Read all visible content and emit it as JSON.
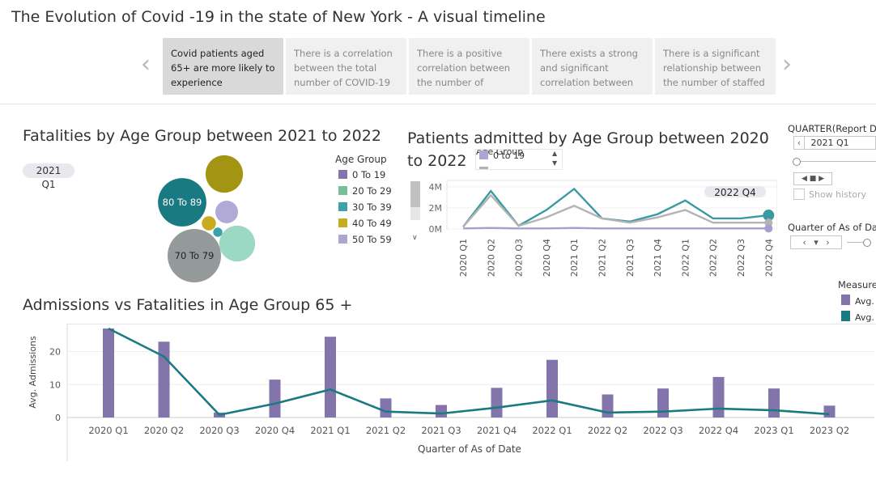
{
  "dashboard": {
    "title": "The Evolution of Covid -19 in the state of New York - A visual timeline"
  },
  "story_points": [
    {
      "label": "Covid patients aged 65+ are more likely to experience",
      "active": true
    },
    {
      "label": "There is a correlation between the total number of COVID-19",
      "active": false
    },
    {
      "label": "There is a positive correlation between the number of",
      "active": false
    },
    {
      "label": "There exists a strong and significant correlation between",
      "active": false
    },
    {
      "label": "There is a significant relationship between the number of staffed",
      "active": false
    }
  ],
  "fatalities_panel": {
    "title": "Fatalities by Age Group  between 2021 to 2022",
    "quarter_pill": {
      "year": "2021",
      "quarter": "Q1"
    },
    "legend_title": "Age Group",
    "legend": [
      {
        "label": "0 To 19",
        "color": "#8374ab"
      },
      {
        "label": "20 To 29",
        "color": "#76bf9a"
      },
      {
        "label": "30 To 39",
        "color": "#3aa1ad"
      },
      {
        "label": "40 To 49",
        "color": "#c8ab1f"
      },
      {
        "label": "50 To 59",
        "color": "#ada6d3"
      }
    ]
  },
  "admitted_panel": {
    "title": "Patients admitted by Age Group between 2020 to 2022",
    "legend_title": "Age Group",
    "legend": [
      {
        "label": "0 to 19",
        "color": "#ada6d3"
      }
    ],
    "annotation": "2022 Q4"
  },
  "filters": {
    "quarter_report": {
      "title": "QUARTER(Report D",
      "value": "2021 Q1",
      "show_history": "Show history"
    },
    "quarter_as_of": {
      "title": "Quarter of As of Dat"
    }
  },
  "measure_legend": {
    "title": "Measure",
    "items": [
      {
        "label": "Avg.",
        "color": "#8374ab"
      },
      {
        "label": "Avg.",
        "color": "#1a7a82"
      }
    ]
  },
  "admissions_panel": {
    "title": "Admissions vs Fatalities in Age Group 65 +"
  },
  "chart_data": [
    {
      "type": "bubble",
      "title": "Fatalities by Age Group  between 2021 to 2022",
      "bubbles": [
        {
          "label": "70 To 79",
          "color": "#94999a",
          "size": 100
        },
        {
          "label": "80 To 89",
          "color": "#1a7a82",
          "size": 82
        },
        {
          "label": "",
          "color": "#a39413",
          "size": 49
        },
        {
          "label": "",
          "color": "#9bd9c4",
          "size": 45
        },
        {
          "label": "",
          "color": "#b1a9d6",
          "size": 18
        },
        {
          "label": "",
          "color": "#c8ab1f",
          "size": 7
        },
        {
          "label": "",
          "color": "#3aa1ad",
          "size": 3
        }
      ]
    },
    {
      "type": "line",
      "title": "Patients admitted by Age Group between 2020 to 2022",
      "categories": [
        "2020 Q1",
        "2020 Q2",
        "2020 Q3",
        "2020 Q4",
        "2021 Q1",
        "2021 Q2",
        "2021 Q3",
        "2021 Q4",
        "2022 Q1",
        "2022 Q2",
        "2022 Q3",
        "2022 Q4"
      ],
      "ytick_labels": [
        "0M",
        "2M",
        "4M"
      ],
      "ylim": [
        0,
        4.6
      ],
      "annotation": "2022 Q4",
      "series": [
        {
          "color": "#3a9aa3",
          "values": [
            0.2,
            3.6,
            0.3,
            1.8,
            3.8,
            1.0,
            0.7,
            1.4,
            2.7,
            1.0,
            1.0,
            1.3
          ]
        },
        {
          "color": "#b3b3b3",
          "values": [
            0.2,
            3.2,
            0.3,
            1.1,
            2.2,
            1.0,
            0.6,
            1.1,
            1.8,
            0.6,
            0.6,
            0.6
          ]
        },
        {
          "color": "#a79fd1",
          "values": [
            0.05,
            0.1,
            0.05,
            0.05,
            0.1,
            0.05,
            0.05,
            0.05,
            0.05,
            0.05,
            0.05,
            0.05
          ]
        }
      ]
    },
    {
      "type": "bar+line",
      "title": "Admissions vs Fatalities in Age Group 65 +",
      "categories": [
        "2020 Q1",
        "2020 Q2",
        "2020 Q3",
        "2020 Q4",
        "2021 Q1",
        "2021 Q2",
        "2021 Q3",
        "2021 Q4",
        "2022 Q1",
        "2022 Q2",
        "2022 Q3",
        "2022 Q4",
        "2023 Q1",
        "2023 Q2"
      ],
      "xlabel": "Quarter of As of Date",
      "ylabel": "Avg. Admissions",
      "yticks": [
        0,
        10,
        20
      ],
      "ylim": [
        0,
        27
      ],
      "series": [
        {
          "type": "bar",
          "color": "#8374ab",
          "values": [
            27,
            23,
            1.5,
            11.5,
            24.5,
            5.8,
            3.8,
            9,
            17.5,
            7,
            8.8,
            12.3,
            8.8,
            3.6
          ]
        },
        {
          "type": "line",
          "color": "#1a7a82",
          "values": [
            27,
            18.5,
            0.8,
            4.2,
            8.5,
            1.8,
            1.2,
            3,
            5.2,
            1.5,
            1.8,
            2.7,
            2.2,
            1.0
          ]
        }
      ]
    }
  ]
}
